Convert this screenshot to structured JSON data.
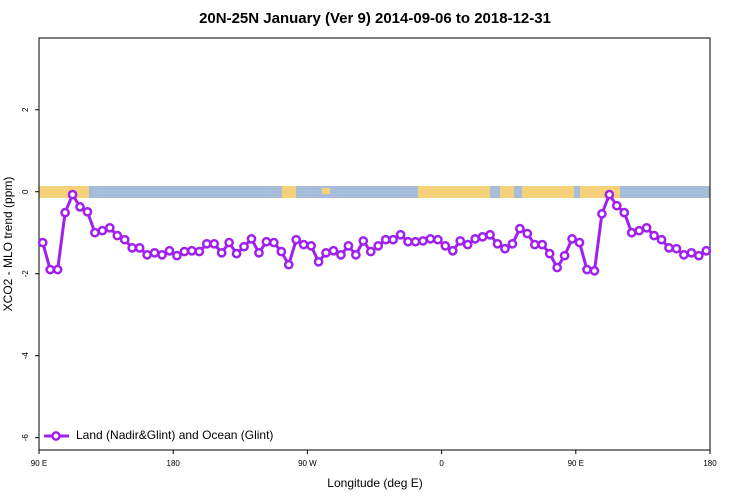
{
  "chart_data": {
    "type": "line",
    "title": "20N-25N January (Ver 9)   2014-09-06 to 2018-12-31",
    "x_label": "Longitude (deg E)",
    "y_label": "XCO2 - MLO trend (ppm)",
    "xlim": [
      90,
      540
    ],
    "xticks": [
      {
        "value": 90,
        "label": "90 E"
      },
      180,
      {
        "value": 270,
        "label": "90 W"
      },
      {
        "value": 360,
        "label": "0"
      },
      {
        "value": 450,
        "label": "90 E"
      },
      {
        "value": 540,
        "label": "180"
      }
    ],
    "ylim": [
      -6.3,
      3.75
    ],
    "yticks": [
      2,
      0,
      -2,
      -4,
      -6
    ],
    "legend": "bottom-left",
    "x": [
      92.5,
      97.5,
      102.5,
      107.5,
      112.5,
      117.5,
      122.5,
      127.5,
      132.5,
      137.5,
      142.5,
      147.5,
      152.5,
      157.5,
      162.5,
      167.5,
      172.5,
      177.5,
      182.5,
      187.5,
      192.5,
      197.5,
      202.5,
      207.5,
      212.5,
      217.5,
      222.5,
      227.5,
      232.5,
      237.5,
      242.5,
      247.5,
      252.5,
      257.5,
      262.5,
      267.5,
      272.5,
      277.5,
      282.5,
      287.5,
      292.5,
      297.5,
      302.5,
      307.5,
      312.5,
      317.5,
      322.5,
      327.5,
      332.5,
      337.5,
      342.5,
      347.5,
      352.5,
      357.5,
      362.5,
      367.5,
      372.5,
      377.5,
      382.5,
      387.5,
      392.5,
      397.5,
      402.5,
      407.5,
      412.5,
      417.5,
      422.5,
      427.5,
      432.5,
      437.5,
      442.5,
      447.5,
      452.5,
      457.5,
      462.5,
      467.5,
      472.5,
      477.5,
      482.5,
      487.5,
      492.5,
      497.5,
      502.5,
      507.5,
      512.5,
      517.5,
      522.5,
      527.5,
      532.5,
      537.5
    ],
    "series": [
      {
        "name": "Land (Nadir&Glint) and Ocean (Glint)",
        "color": "#a020f0",
        "values": [
          -1.24,
          -1.9,
          -1.9,
          -0.51,
          -0.07,
          -0.37,
          -0.49,
          -1.0,
          -0.95,
          -0.88,
          -1.07,
          -1.17,
          -1.37,
          -1.37,
          -1.54,
          -1.49,
          -1.54,
          -1.44,
          -1.56,
          -1.46,
          -1.44,
          -1.46,
          -1.27,
          -1.27,
          -1.49,
          -1.24,
          -1.51,
          -1.34,
          -1.15,
          -1.49,
          -1.22,
          -1.24,
          -1.46,
          -1.78,
          -1.17,
          -1.29,
          -1.32,
          -1.71,
          -1.49,
          -1.44,
          -1.54,
          -1.32,
          -1.54,
          -1.2,
          -1.46,
          -1.32,
          -1.17,
          -1.17,
          -1.05,
          -1.22,
          -1.22,
          -1.2,
          -1.15,
          -1.17,
          -1.32,
          -1.44,
          -1.2,
          -1.29,
          -1.15,
          -1.1,
          -1.05,
          -1.27,
          -1.39,
          -1.27,
          -0.9,
          -1.02,
          -1.29,
          -1.29,
          -1.51,
          -1.85,
          -1.56,
          -1.15,
          -1.24,
          -1.9,
          -1.93,
          -0.54,
          -0.07,
          -0.34,
          -0.51,
          -1.0,
          -0.95,
          -0.88,
          -1.07,
          -1.17,
          -1.37,
          -1.39,
          -1.54,
          -1.49,
          -1.56,
          -1.44
        ]
      }
    ]
  }
}
